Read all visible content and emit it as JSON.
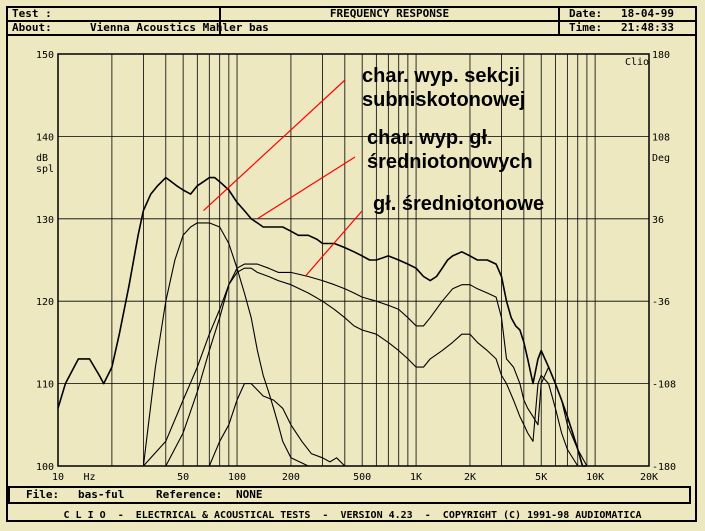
{
  "header": {
    "test_label": "Test :",
    "about_label": "About:",
    "about_value": "Vienna Acoustics Mahler bas",
    "title": "FREQUENCY RESPONSE",
    "date_label": "Date:",
    "date_value": "18-04-99",
    "time_label": "Time:",
    "time_value": "21:48:33"
  },
  "footer": {
    "file_label": "File:",
    "file_value": "bas-ful",
    "reference_label": "Reference:",
    "reference_value": "NONE"
  },
  "banner": "C L I O  -  ELECTRICAL & ACOUSTICAL TESTS  -  VERSION 4.23  -  COPYRIGHT (C) 1991-98 AUDIOMATICA",
  "chart_data": {
    "type": "line",
    "title": "FREQUENCY RESPONSE",
    "brand_label": "Clio",
    "ylabel": "dB spl",
    "ylabel_lines": [
      "dB",
      "spl"
    ],
    "y2label": "Deg",
    "xscale": "log",
    "xlim": [
      10,
      20000
    ],
    "ylim": [
      100,
      150
    ],
    "y2lim": [
      -180,
      180
    ],
    "xticks": [
      10,
      50,
      100,
      200,
      500,
      1000,
      2000,
      5000,
      10000,
      20000
    ],
    "xtick_labels": [
      "10",
      "50",
      "100",
      "200",
      "500",
      "1K",
      "2K",
      "5K",
      "10K",
      "20K"
    ],
    "xunit": "Hz",
    "yticks": [
      100,
      110,
      120,
      130,
      140,
      150
    ],
    "y2ticks": [
      -180,
      -108,
      -36,
      36,
      108,
      180
    ],
    "grid": true,
    "colors": {
      "background": "#ede8c0",
      "curves": "#000000",
      "annotation_lines": "#ff0000"
    },
    "annotations": [
      {
        "lines": [
          "char. wyp. sekcji",
          "subniskotonowej"
        ],
        "points_to": {
          "x": 65,
          "y": 131
        }
      },
      {
        "lines": [
          "char. wyp. gł.",
          "średniotonowych"
        ],
        "points_to": {
          "x": 130,
          "y": 130
        }
      },
      {
        "lines": [
          "gł. średniotonowe"
        ],
        "points_to": {
          "x": 240,
          "y": 123
        }
      }
    ],
    "series": [
      {
        "x": [
          10,
          11,
          13,
          15,
          17,
          18,
          20,
          22,
          25,
          28,
          30,
          33,
          36,
          40,
          43,
          46,
          50,
          55,
          60,
          65,
          70,
          75,
          80,
          90,
          100,
          110,
          120,
          130,
          140,
          150,
          160,
          180,
          200,
          220,
          250,
          280,
          300,
          350,
          400,
          450,
          500,
          550,
          600,
          700,
          800,
          900,
          1000,
          1100,
          1200,
          1300,
          1400,
          1500,
          1600,
          1800,
          2000,
          2200,
          2500,
          2800,
          3000,
          3200,
          3400,
          3600,
          3800,
          4000,
          4200,
          4500,
          4800,
          5000,
          5500,
          6000,
          6500,
          7000,
          7500,
          8000,
          8500,
          9000
        ],
        "values": [
          107,
          110,
          113,
          113,
          111,
          110,
          112,
          116,
          122,
          128,
          131,
          133,
          134,
          135,
          134.5,
          134,
          133.5,
          133,
          134,
          134.5,
          135,
          135,
          134.5,
          133.5,
          132,
          131,
          130,
          129.5,
          129,
          129,
          129,
          129,
          128.5,
          128,
          128,
          127.5,
          127,
          127,
          126.5,
          126,
          125.5,
          125,
          125,
          125.5,
          125,
          124.5,
          124,
          123,
          122.5,
          123,
          124,
          125,
          125.5,
          126,
          125.5,
          125,
          125,
          124.5,
          123,
          120,
          118,
          117,
          116.5,
          115,
          113,
          110,
          113,
          114,
          112,
          110,
          108,
          106,
          104,
          102,
          100,
          100
        ]
      },
      {
        "x": [
          30,
          35,
          40,
          45,
          50,
          55,
          60,
          70,
          80,
          90,
          100,
          110,
          120,
          130,
          140,
          150,
          160,
          170,
          180,
          200,
          250
        ],
        "values": [
          100,
          112,
          120,
          125,
          128,
          129,
          129.5,
          129.5,
          129,
          127,
          124,
          121,
          118,
          114,
          111,
          109,
          107,
          105,
          103,
          101,
          100
        ]
      },
      {
        "x": [
          40,
          50,
          60,
          70,
          80,
          90,
          100,
          110,
          120,
          130,
          150,
          170,
          200,
          250,
          300,
          350,
          400,
          450,
          500,
          600,
          700,
          800,
          900,
          1000,
          1100,
          1200,
          1400,
          1600,
          1800,
          2000,
          2200,
          2500,
          2800,
          3000,
          3200,
          3500,
          3800,
          4000,
          4200,
          4500,
          4800,
          5000,
          5500,
          6000,
          6500,
          7000,
          8000,
          9000
        ],
        "values": [
          100,
          104,
          109,
          114,
          118,
          122,
          124,
          124.5,
          124.5,
          124.5,
          124,
          123.5,
          123.5,
          123,
          122.5,
          122,
          121.5,
          121,
          120.5,
          120,
          119.5,
          119,
          118,
          117,
          117,
          118,
          120,
          121.5,
          122,
          122,
          121.5,
          121,
          120.5,
          118,
          113,
          112,
          110,
          108,
          107,
          106,
          105,
          110,
          112,
          110,
          108,
          105,
          102,
          100
        ]
      },
      {
        "x": [
          30,
          40,
          50,
          60,
          70,
          80,
          90,
          100,
          110,
          120,
          130,
          150,
          170,
          200,
          250,
          300,
          350,
          400,
          450,
          500,
          600,
          700,
          800,
          900,
          1000,
          1100,
          1200,
          1400,
          1600,
          1800,
          2000,
          2200,
          2500,
          2800,
          3000,
          3200,
          3500,
          3800,
          4000,
          4200,
          4500,
          4800,
          5000,
          5500,
          6000,
          6500,
          7000,
          8000,
          9000
        ],
        "values": [
          100,
          103,
          108,
          112,
          116,
          119,
          122,
          123.5,
          124,
          124,
          123.5,
          123,
          122.5,
          122,
          121,
          120,
          119,
          118,
          117,
          116.5,
          116,
          115,
          114,
          113,
          112,
          112,
          113,
          114,
          115,
          116,
          116,
          115,
          114,
          113,
          111,
          110,
          108,
          106,
          105,
          104,
          103,
          110,
          111,
          110,
          107,
          104,
          102,
          100,
          100
        ]
      },
      {
        "x": [
          70,
          80,
          90,
          100,
          110,
          120,
          140,
          160,
          180,
          200,
          230,
          260,
          300,
          330,
          360,
          400
        ],
        "values": [
          100,
          103,
          105,
          108,
          110,
          110,
          108.5,
          108,
          107,
          105,
          103,
          101.5,
          101,
          100.5,
          101,
          100
        ]
      }
    ]
  }
}
